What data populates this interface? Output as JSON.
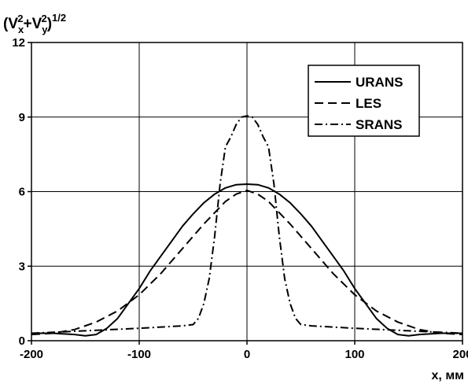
{
  "chart_data": {
    "type": "line",
    "xlabel": "x, мм",
    "ylabel": {
      "base": "(V",
      "sub1": "x",
      "sup1": "2",
      "plus": "+V",
      "sub2": "y",
      "sup2": "2",
      "close": ")",
      "exp": "1/2"
    },
    "xlim": [
      -200,
      200
    ],
    "ylim": [
      0,
      12
    ],
    "xticks": [
      -200,
      -100,
      0,
      100,
      200
    ],
    "yticks": [
      0,
      3,
      6,
      9,
      12
    ],
    "grid": true,
    "legend_position": "top-right",
    "series": [
      {
        "name": "URANS",
        "style": "solid",
        "x": [
          -200,
          -180,
          -160,
          -150,
          -140,
          -130,
          -120,
          -110,
          -100,
          -90,
          -80,
          -70,
          -60,
          -50,
          -40,
          -30,
          -20,
          -10,
          0,
          10,
          20,
          30,
          40,
          50,
          60,
          70,
          80,
          90,
          100,
          110,
          120,
          130,
          140,
          150,
          160,
          180,
          200
        ],
        "y": [
          0.3,
          0.3,
          0.25,
          0.2,
          0.25,
          0.5,
          0.9,
          1.5,
          2.1,
          2.8,
          3.4,
          4.0,
          4.6,
          5.1,
          5.55,
          5.9,
          6.15,
          6.28,
          6.3,
          6.28,
          6.15,
          5.9,
          5.55,
          5.1,
          4.6,
          4.0,
          3.4,
          2.8,
          2.1,
          1.5,
          0.9,
          0.5,
          0.25,
          0.2,
          0.25,
          0.3,
          0.3
        ]
      },
      {
        "name": "LES",
        "style": "dashed",
        "x": [
          -200,
          -180,
          -160,
          -140,
          -120,
          -100,
          -80,
          -60,
          -40,
          -20,
          -10,
          0,
          10,
          20,
          40,
          60,
          80,
          100,
          120,
          140,
          160,
          180,
          200
        ],
        "y": [
          0.25,
          0.3,
          0.45,
          0.75,
          1.2,
          1.85,
          2.7,
          3.7,
          4.7,
          5.6,
          5.9,
          6.05,
          5.9,
          5.6,
          4.7,
          3.7,
          2.7,
          1.85,
          1.2,
          0.75,
          0.45,
          0.3,
          0.25
        ]
      },
      {
        "name": "SRANS",
        "style": "dash-dot",
        "x": [
          -200,
          -150,
          -100,
          -60,
          -50,
          -45,
          -40,
          -35,
          -30,
          -25,
          -20,
          -15,
          -10,
          -5,
          0,
          5,
          10,
          15,
          20,
          25,
          30,
          35,
          40,
          45,
          50,
          60,
          100,
          150,
          200
        ],
        "y": [
          0.3,
          0.4,
          0.5,
          0.6,
          0.65,
          0.9,
          1.5,
          2.5,
          4.2,
          6.3,
          7.8,
          8.2,
          8.7,
          9.0,
          9.05,
          9.0,
          8.7,
          8.2,
          7.8,
          6.3,
          4.2,
          2.5,
          1.5,
          0.9,
          0.65,
          0.6,
          0.5,
          0.4,
          0.3
        ]
      }
    ]
  }
}
